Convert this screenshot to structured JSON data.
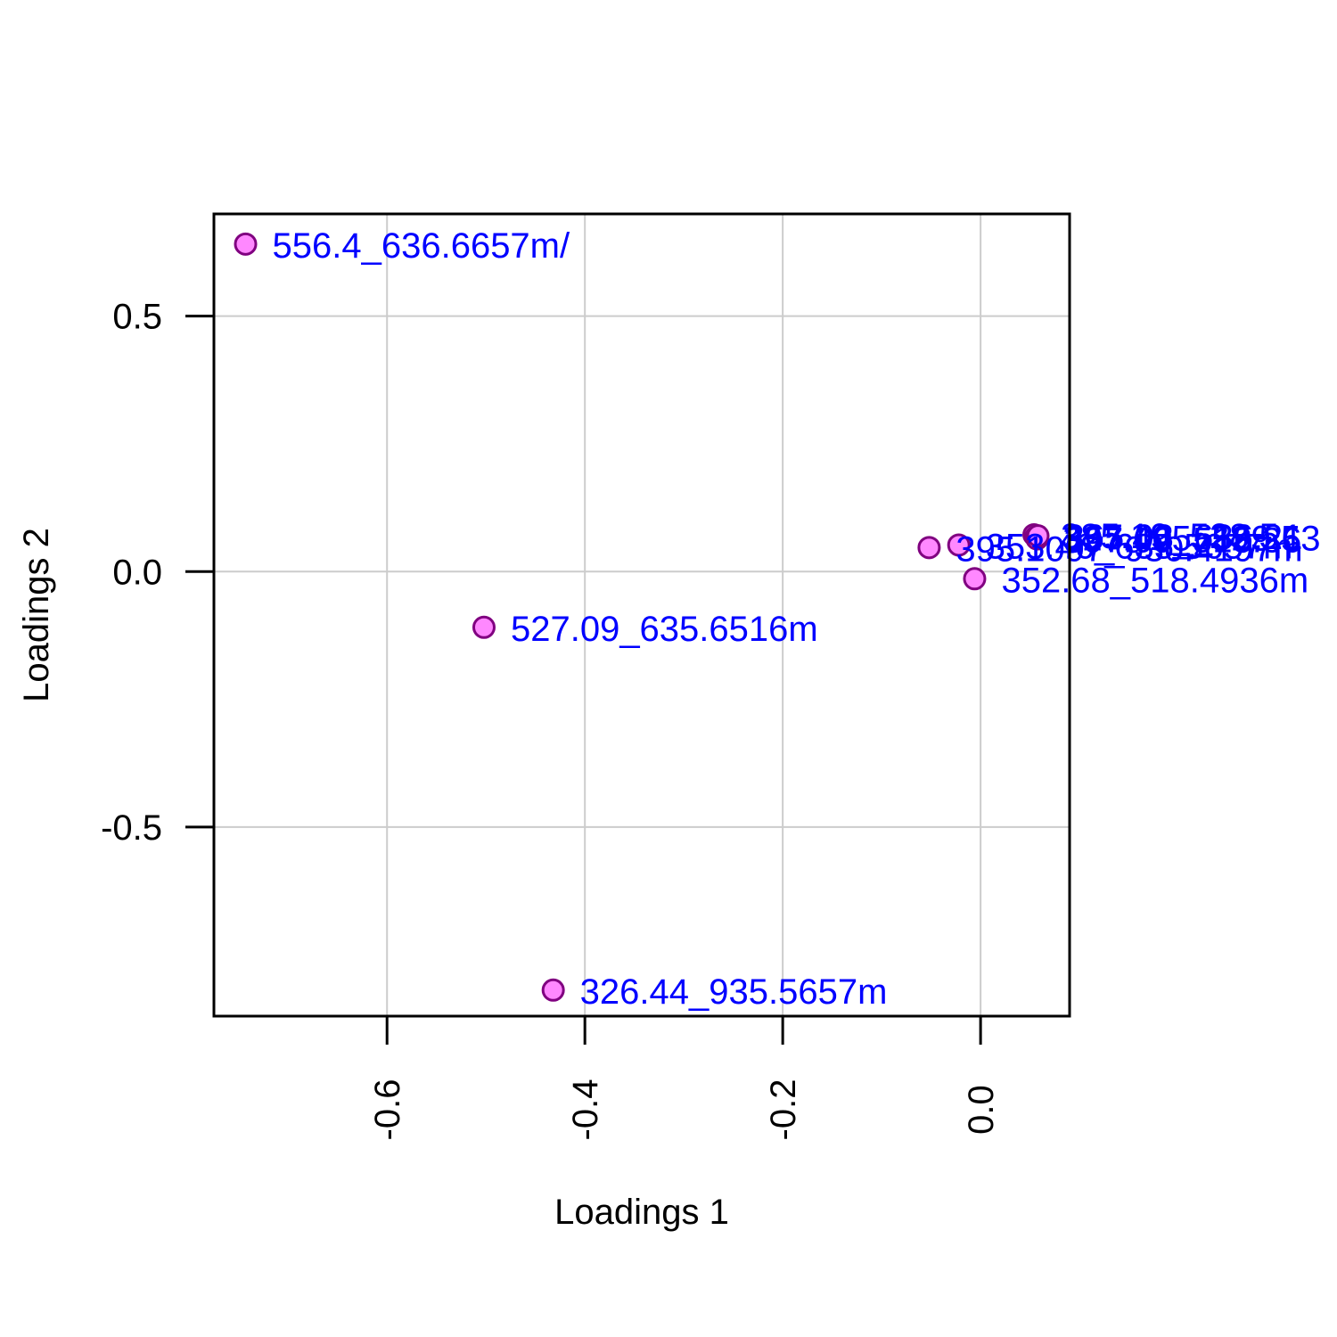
{
  "chart_data": {
    "type": "scatter",
    "xlabel": "Loadings 1",
    "ylabel": "Loadings 2",
    "xlim": [
      -0.775,
      0.09
    ],
    "ylim": [
      -0.87,
      0.7
    ],
    "x_ticks": [
      {
        "value": -0.6,
        "label": "-0.6"
      },
      {
        "value": -0.4,
        "label": "-0.4"
      },
      {
        "value": -0.2,
        "label": "-0.2"
      },
      {
        "value": 0.0,
        "label": "0.0"
      }
    ],
    "y_ticks": [
      {
        "value": -0.5,
        "label": "-0.5"
      },
      {
        "value": 0.0,
        "label": "0.0"
      },
      {
        "value": 0.5,
        "label": "0.5"
      }
    ],
    "grid": true,
    "colors": {
      "point_fill": "#ff88ff",
      "point_stroke": "#800080",
      "label": "#0000ff",
      "grid": "#cccccc"
    },
    "points": [
      {
        "x": -0.743,
        "y": 0.641,
        "label": "556.4_636.6657m/"
      },
      {
        "x": -0.502,
        "y": -0.109,
        "label": "527.09_635.6516m"
      },
      {
        "x": -0.432,
        "y": -0.819,
        "label": "326.44_935.5657m"
      },
      {
        "x": -0.052,
        "y": 0.047,
        "label": "395.1097_930.4197m"
      },
      {
        "x": -0.022,
        "y": 0.052,
        "label": "353.46_635.5657m"
      },
      {
        "x": -0.006,
        "y": -0.014,
        "label": "352.68_518.4936m"
      },
      {
        "x": 0.054,
        "y": 0.072,
        "label": "385.19_528.5"
      },
      {
        "x": 0.056,
        "y": 0.068,
        "label": "327.405_529.53"
      },
      {
        "x": 0.057,
        "y": 0.064,
        "label": "397.09_518.36"
      },
      {
        "x": 0.058,
        "y": 0.07,
        "label": "365.03_636.21"
      }
    ]
  }
}
